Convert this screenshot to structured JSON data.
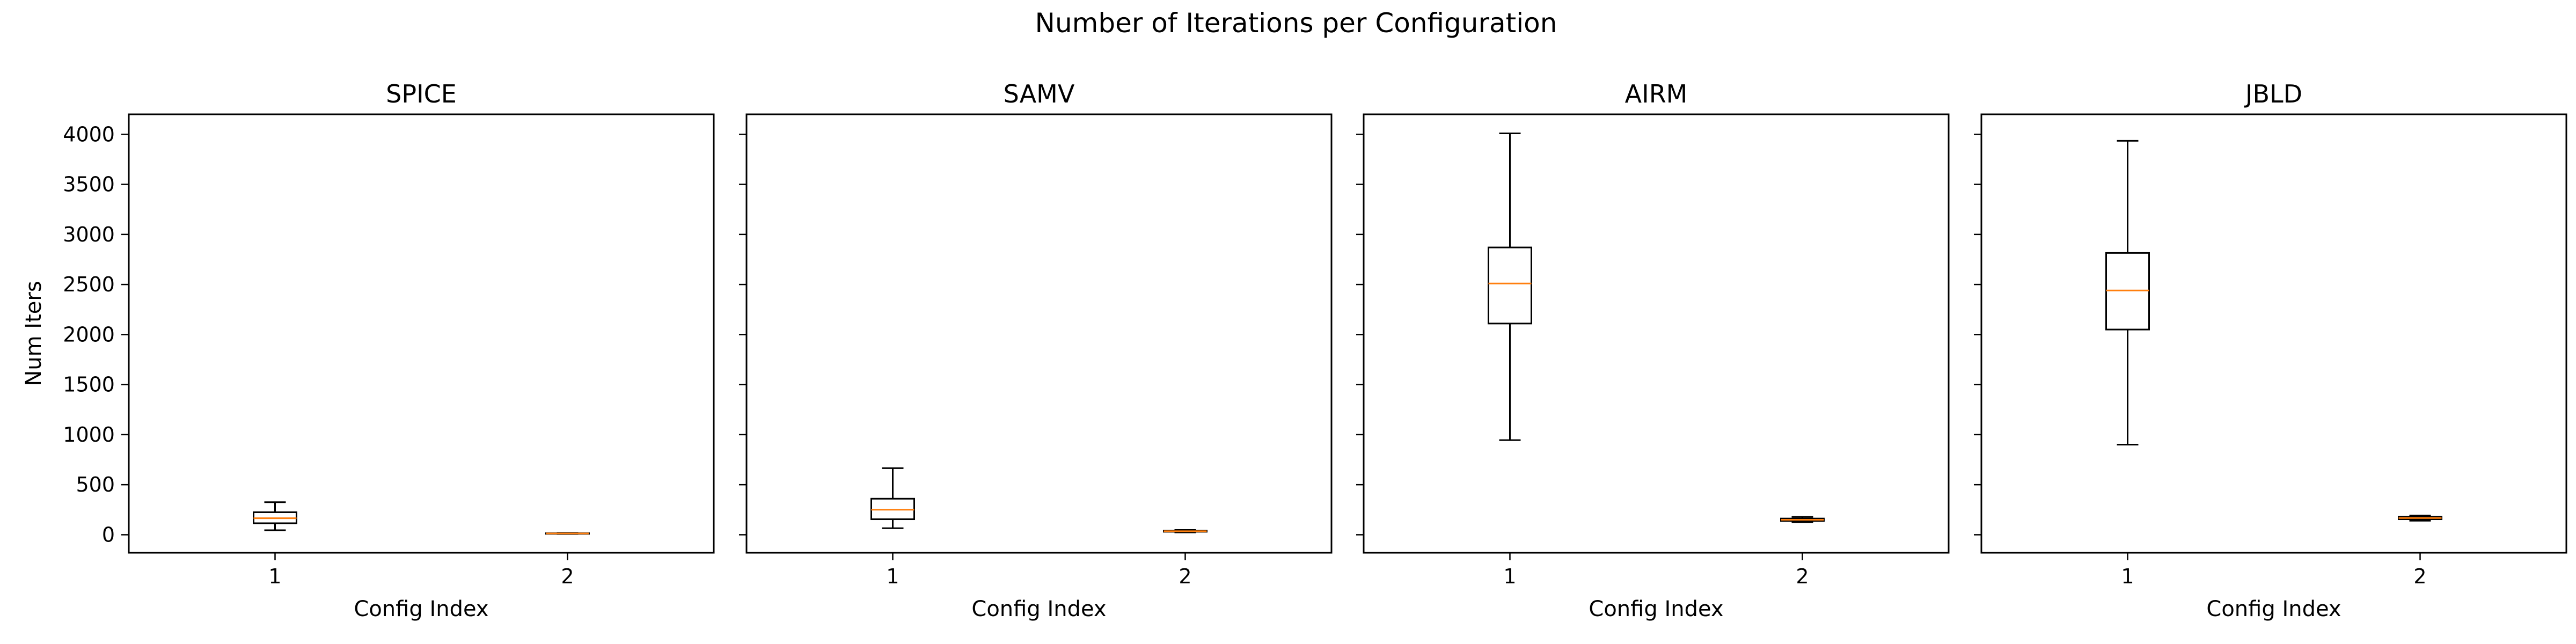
{
  "figure": {
    "title": "Number of Iterations per Configuration"
  },
  "chart_data": [
    {
      "type": "boxplot",
      "title": "SPICE",
      "xlabel": "Config Index",
      "ylabel": "Num Iters",
      "categories": [
        "1",
        "2"
      ],
      "ylim": [
        -180,
        4200
      ],
      "yticks": [
        0,
        500,
        1000,
        1500,
        2000,
        2500,
        3000,
        3500,
        4000
      ],
      "boxes": [
        {
          "category": "1",
          "whisker_low": 45,
          "q1": 115,
          "median": 165,
          "q3": 225,
          "whisker_high": 325
        },
        {
          "category": "2",
          "whisker_low": 8,
          "q1": 11,
          "median": 13,
          "q3": 15,
          "whisker_high": 18
        }
      ]
    },
    {
      "type": "boxplot",
      "title": "SAMV",
      "xlabel": "Config Index",
      "ylabel": "",
      "categories": [
        "1",
        "2"
      ],
      "ylim": [
        -180,
        4200
      ],
      "yticks": [
        0,
        500,
        1000,
        1500,
        2000,
        2500,
        3000,
        3500,
        4000
      ],
      "boxes": [
        {
          "category": "1",
          "whisker_low": 65,
          "q1": 155,
          "median": 250,
          "q3": 360,
          "whisker_high": 665
        },
        {
          "category": "2",
          "whisker_low": 24,
          "q1": 30,
          "median": 35,
          "q3": 40,
          "whisker_high": 48
        }
      ]
    },
    {
      "type": "boxplot",
      "title": "AIRM",
      "xlabel": "Config Index",
      "ylabel": "",
      "categories": [
        "1",
        "2"
      ],
      "ylim": [
        -180,
        4200
      ],
      "yticks": [
        0,
        500,
        1000,
        1500,
        2000,
        2500,
        3000,
        3500,
        4000
      ],
      "boxes": [
        {
          "category": "1",
          "whisker_low": 945,
          "q1": 2110,
          "median": 2510,
          "q3": 2870,
          "whisker_high": 4010
        },
        {
          "category": "2",
          "whisker_low": 125,
          "q1": 138,
          "median": 150,
          "q3": 162,
          "whisker_high": 178
        }
      ]
    },
    {
      "type": "boxplot",
      "title": "JBLD",
      "xlabel": "Config Index",
      "ylabel": "",
      "categories": [
        "1",
        "2"
      ],
      "ylim": [
        -180,
        4200
      ],
      "yticks": [
        0,
        500,
        1000,
        1500,
        2000,
        2500,
        3000,
        3500,
        4000
      ],
      "boxes": [
        {
          "category": "1",
          "whisker_low": 900,
          "q1": 2050,
          "median": 2440,
          "q3": 2815,
          "whisker_high": 3935
        },
        {
          "category": "2",
          "whisker_low": 140,
          "q1": 155,
          "median": 167,
          "q3": 180,
          "whisker_high": 192
        }
      ]
    }
  ],
  "style": {
    "box_color": "#000000",
    "median_color": "#ff7f0e",
    "axis_color": "#000000",
    "background": "#ffffff"
  }
}
